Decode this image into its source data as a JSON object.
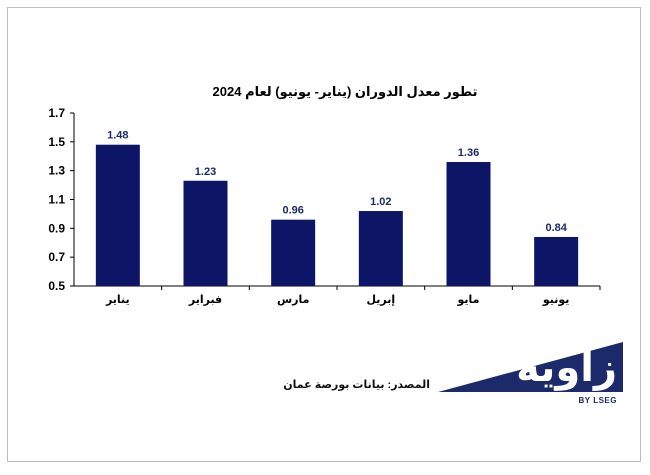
{
  "chart_data": {
    "type": "bar",
    "title": "تطور معدل الدوران (يناير- يونيو) لعام 2024",
    "categories": [
      "يناير",
      "فبراير",
      "مارس",
      "إبريل",
      "مايو",
      "يونيو"
    ],
    "values": [
      1.48,
      1.23,
      0.96,
      1.02,
      1.36,
      0.84
    ],
    "value_labels": [
      "1.48",
      "1.23",
      "0.96",
      "1.02",
      "1.36",
      "0.84"
    ],
    "ylim": [
      0.5,
      1.7
    ],
    "yticks": [
      0.5,
      0.7,
      0.9,
      1.1,
      1.3,
      1.5,
      1.7
    ],
    "ytick_labels": [
      "0.5",
      "0.7",
      "0.9",
      "1.1",
      "1.3",
      "1.5",
      "1.7"
    ],
    "bar_color": "#0d1566",
    "grid": false
  },
  "source_text": "المصدر: بيانات بورصة عمان",
  "logo": {
    "text": "زاوية",
    "subtitle": "BY LSEG",
    "color": "#1c2a6b"
  }
}
